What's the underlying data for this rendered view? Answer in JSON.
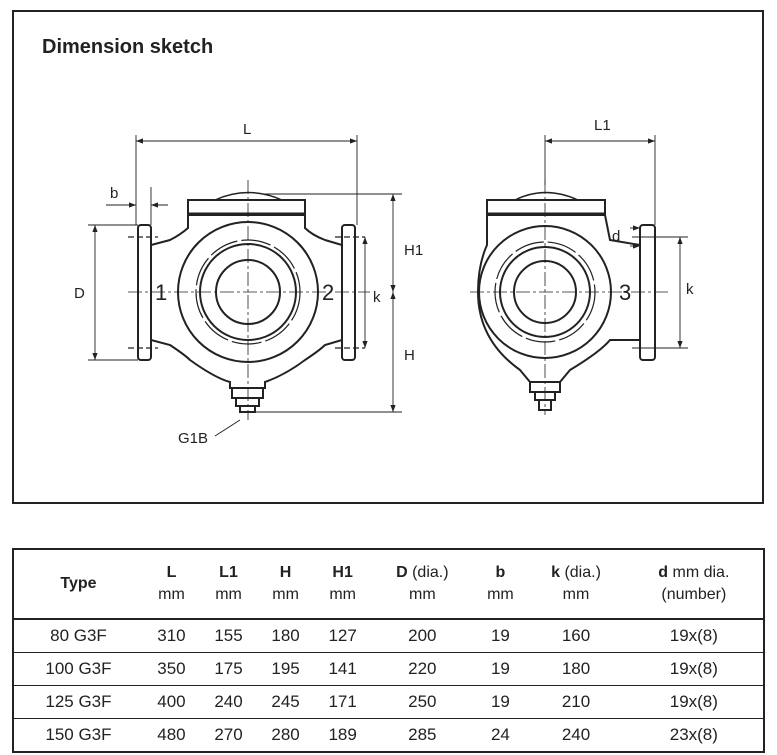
{
  "title": "Dimension sketch",
  "drawing": {
    "labels": {
      "L": "L",
      "L1": "L1",
      "b": "b",
      "D": "D",
      "H1": "H1",
      "H": "H",
      "k_left": "k",
      "k_right": "k",
      "d": "d",
      "port1": "1",
      "port2": "2",
      "port3": "3",
      "G1B": "G1B"
    }
  },
  "table": {
    "headers": [
      {
        "bold": "Type",
        "unit": ""
      },
      {
        "bold": "L",
        "unit": "mm"
      },
      {
        "bold": "L1",
        "unit": "mm"
      },
      {
        "bold": "H",
        "unit": "mm"
      },
      {
        "bold": "H1",
        "unit": "mm"
      },
      {
        "bold": "D",
        "extra": " (dia.)",
        "unit": "mm"
      },
      {
        "bold": "b",
        "unit": "mm"
      },
      {
        "bold": "k",
        "extra": " (dia.)",
        "unit": "mm"
      },
      {
        "bold": "d",
        "extra": " mm dia.",
        "unit": "(number)"
      }
    ],
    "rows": [
      [
        "80 G3F",
        "310",
        "155",
        "180",
        "127",
        "200",
        "19",
        "160",
        "19x(8)"
      ],
      [
        "100 G3F",
        "350",
        "175",
        "195",
        "141",
        "220",
        "19",
        "180",
        "19x(8)"
      ],
      [
        "125 G3F",
        "400",
        "240",
        "245",
        "171",
        "250",
        "19",
        "210",
        "19x(8)"
      ],
      [
        "150 G3F",
        "480",
        "270",
        "280",
        "189",
        "285",
        "24",
        "240",
        "23x(8)"
      ]
    ]
  }
}
